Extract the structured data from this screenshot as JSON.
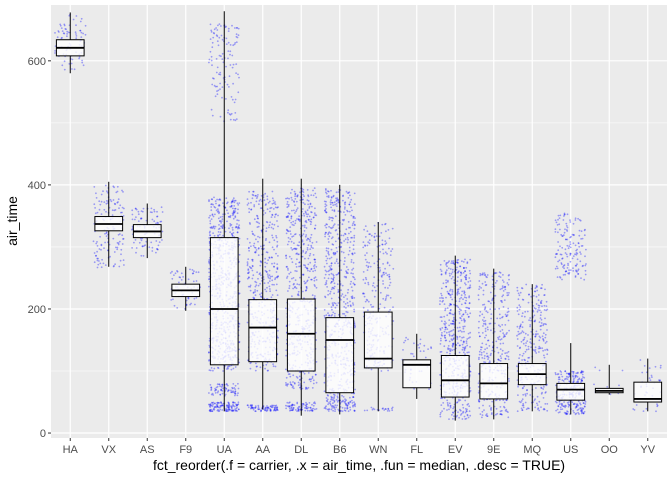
{
  "chart_data": {
    "type": "boxplot",
    "title": "",
    "xlabel": "fct_reorder(.f = carrier, .x = air_time, .fun = median, .desc = TRUE)",
    "ylabel": "air_time",
    "ylim": [
      -8,
      690
    ],
    "yticks": [
      0,
      200,
      400,
      600
    ],
    "ytick_labels": [
      "0",
      "200",
      "400",
      "600"
    ],
    "grid": true,
    "legend": "none",
    "point_color": "#0000ff",
    "box_fill": "#ffffff",
    "box_stroke": "#000000",
    "panel_background": "#ebebeb",
    "grid_color": "#ffffff",
    "categories": [
      "HA",
      "VX",
      "AS",
      "F9",
      "UA",
      "AA",
      "DL",
      "B6",
      "WN",
      "FL",
      "EV",
      "9E",
      "MQ",
      "US",
      "OO",
      "YV"
    ],
    "boxes": [
      {
        "carrier": "HA",
        "min": 580,
        "q1": 608,
        "median": 621,
        "q3": 634,
        "max": 678
      },
      {
        "carrier": "VX",
        "min": 268,
        "q1": 326,
        "median": 337,
        "q3": 349,
        "max": 405
      },
      {
        "carrier": "AS",
        "min": 282,
        "q1": 315,
        "median": 325,
        "q3": 336,
        "max": 370
      },
      {
        "carrier": "F9",
        "min": 197,
        "q1": 220,
        "median": 230,
        "q3": 240,
        "max": 268
      },
      {
        "carrier": "UA",
        "min": 35,
        "q1": 110,
        "median": 200,
        "q3": 315,
        "max": 680
      },
      {
        "carrier": "AA",
        "min": 38,
        "q1": 115,
        "median": 170,
        "q3": 215,
        "max": 410
      },
      {
        "carrier": "DL",
        "min": 28,
        "q1": 100,
        "median": 160,
        "q3": 216,
        "max": 410
      },
      {
        "carrier": "B6",
        "min": 30,
        "q1": 65,
        "median": 150,
        "q3": 186,
        "max": 400
      },
      {
        "carrier": "WN",
        "min": 35,
        "q1": 105,
        "median": 120,
        "q3": 195,
        "max": 340
      },
      {
        "carrier": "FL",
        "min": 55,
        "q1": 73,
        "median": 110,
        "q3": 118,
        "max": 160
      },
      {
        "carrier": "EV",
        "min": 20,
        "q1": 58,
        "median": 85,
        "q3": 125,
        "max": 286
      },
      {
        "carrier": "9E",
        "min": 22,
        "q1": 55,
        "median": 80,
        "q3": 112,
        "max": 265
      },
      {
        "carrier": "MQ",
        "min": 35,
        "q1": 78,
        "median": 95,
        "q3": 112,
        "max": 240
      },
      {
        "carrier": "US",
        "min": 30,
        "q1": 53,
        "median": 70,
        "q3": 80,
        "max": 145
      },
      {
        "carrier": "OO",
        "min": 62,
        "q1": 65,
        "median": 68,
        "q3": 72,
        "max": 110
      },
      {
        "carrier": "YV",
        "min": 35,
        "q1": 50,
        "median": 55,
        "q3": 82,
        "max": 120
      }
    ],
    "point_clusters": [
      {
        "carrier": "HA",
        "segments": [
          [
            585,
            675,
            80
          ]
        ]
      },
      {
        "carrier": "VX",
        "segments": [
          [
            265,
            400,
            140
          ]
        ]
      },
      {
        "carrier": "AS",
        "segments": [
          [
            285,
            365,
            90
          ]
        ]
      },
      {
        "carrier": "F9",
        "segments": [
          [
            200,
            265,
            60
          ]
        ]
      },
      {
        "carrier": "UA",
        "segments": [
          [
            35,
            50,
            120
          ],
          [
            60,
            80,
            70
          ],
          [
            100,
            380,
            650
          ],
          [
            500,
            660,
            120
          ]
        ]
      },
      {
        "carrier": "AA",
        "segments": [
          [
            35,
            45,
            80
          ],
          [
            100,
            390,
            450
          ]
        ]
      },
      {
        "carrier": "DL",
        "segments": [
          [
            35,
            50,
            80
          ],
          [
            70,
            395,
            550
          ]
        ]
      },
      {
        "carrier": "B6",
        "segments": [
          [
            35,
            55,
            90
          ],
          [
            55,
            395,
            600
          ]
        ]
      },
      {
        "carrier": "WN",
        "segments": [
          [
            35,
            42,
            20
          ],
          [
            100,
            340,
            250
          ]
        ]
      },
      {
        "carrier": "FL",
        "segments": [
          [
            60,
            155,
            40
          ]
        ]
      },
      {
        "carrier": "EV",
        "segments": [
          [
            22,
            280,
            550
          ]
        ]
      },
      {
        "carrier": "9E",
        "segments": [
          [
            25,
            260,
            350
          ]
        ]
      },
      {
        "carrier": "MQ",
        "segments": [
          [
            35,
            240,
            300
          ]
        ]
      },
      {
        "carrier": "US",
        "segments": [
          [
            30,
            100,
            250
          ],
          [
            245,
            355,
            150
          ]
        ]
      },
      {
        "carrier": "OO",
        "segments": [
          [
            62,
            110,
            10
          ]
        ]
      },
      {
        "carrier": "YV",
        "segments": [
          [
            35,
            120,
            40
          ]
        ]
      }
    ]
  }
}
